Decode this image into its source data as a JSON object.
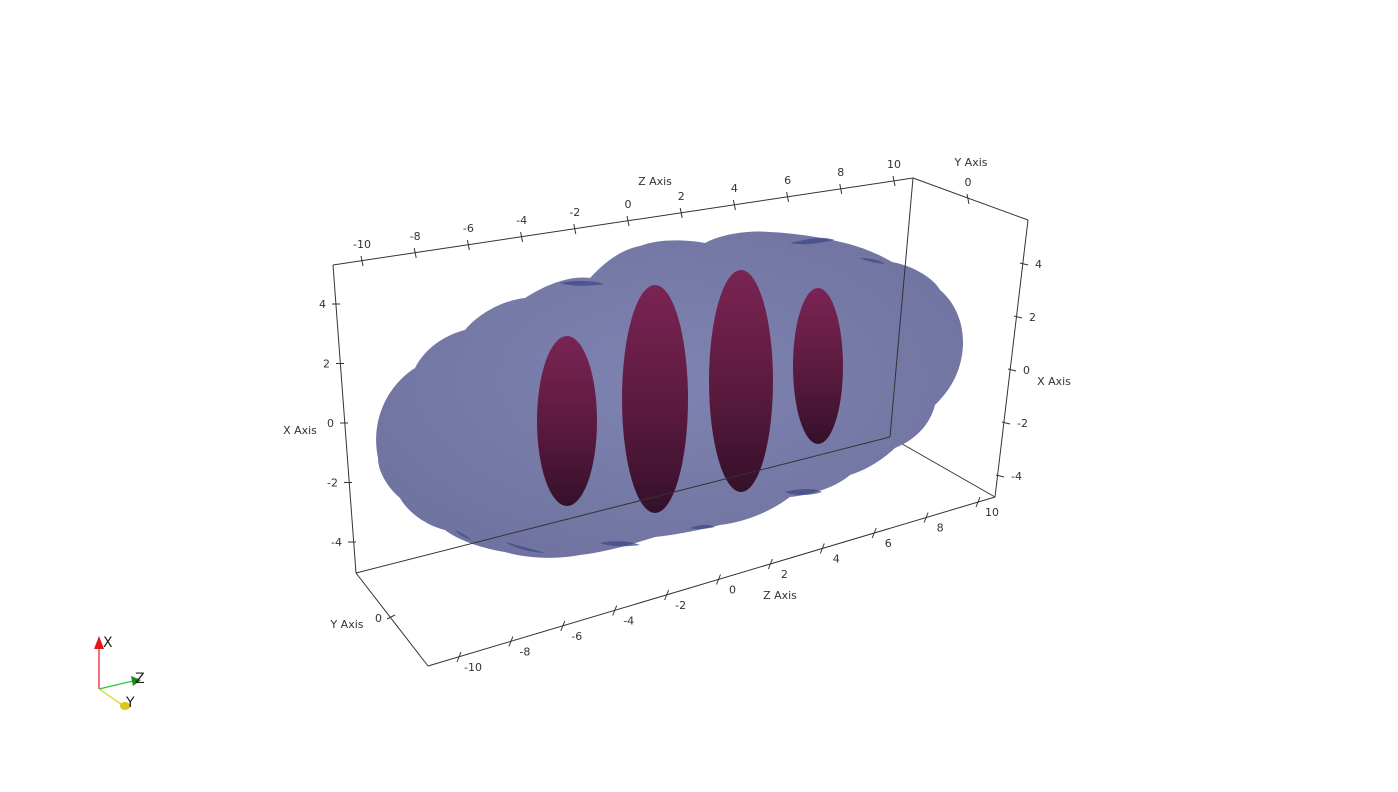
{
  "scene": {
    "background": "#ffffff",
    "outer_surface_color": "#7c7fae",
    "inner_surface_color": "#6b1c47"
  },
  "axes": {
    "z_top": {
      "title": "Z Axis",
      "ticks": [
        "-10",
        "-8",
        "-6",
        "-4",
        "-2",
        "0",
        "2",
        "4",
        "6",
        "8",
        "10"
      ]
    },
    "z_bottom": {
      "title": "Z Axis",
      "ticks": [
        "-10",
        "-8",
        "-6",
        "-4",
        "-2",
        "0",
        "2",
        "4",
        "6",
        "8",
        "10"
      ]
    },
    "x_left": {
      "title": "X Axis",
      "ticks": [
        "4",
        "2",
        "0",
        "-2",
        "-4"
      ]
    },
    "x_right": {
      "title": "X Axis",
      "ticks": [
        "4",
        "2",
        "0",
        "-2",
        "-4"
      ]
    },
    "y_top": {
      "title": "Y Axis",
      "ticks": [
        "0"
      ]
    },
    "y_bottom": {
      "title": "Y Axis",
      "ticks": [
        "0"
      ]
    }
  },
  "orientation": {
    "x_label": "X",
    "y_label": "Y",
    "z_label": "Z",
    "x_color": "#e8141a",
    "y_color": "#e0d21a",
    "z_color": "#1a8a1a"
  }
}
